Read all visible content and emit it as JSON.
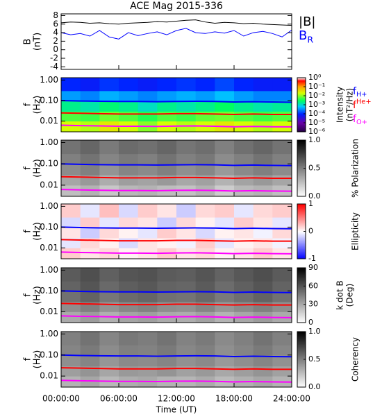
{
  "chart_data": [
    {
      "type": "line",
      "title": "ACE Mag 2015-336",
      "ylabel": "B",
      "yunit": "(nT)",
      "x": [
        0,
        1,
        2,
        3,
        4,
        5,
        6,
        7,
        8,
        9,
        10,
        11,
        12,
        13,
        14,
        15,
        16,
        17,
        18,
        19,
        20,
        21,
        22,
        23,
        24
      ],
      "series": [
        {
          "name": "|B|",
          "color": "#000000",
          "values": [
            6.3,
            6.5,
            6.4,
            6.2,
            6.3,
            6.1,
            6.0,
            6.2,
            6.3,
            6.4,
            6.6,
            6.5,
            6.7,
            6.9,
            7.0,
            6.5,
            6.2,
            6.4,
            6.3,
            6.1,
            6.2,
            6.0,
            5.9,
            5.8,
            5.7
          ]
        },
        {
          "name": "B",
          "sub": "R",
          "color": "#0000ff",
          "values": [
            4.0,
            3.5,
            3.8,
            3.2,
            4.5,
            3.0,
            2.5,
            4.0,
            3.3,
            3.8,
            4.2,
            3.5,
            4.5,
            5.0,
            4.0,
            3.8,
            4.2,
            3.9,
            4.5,
            3.2,
            4.0,
            4.3,
            3.8,
            3.0,
            4.6
          ]
        }
      ],
      "xlim": [
        0,
        24
      ],
      "xticks": [
        0,
        6,
        12,
        18,
        24
      ],
      "ylim": [
        -4.6,
        8.4
      ],
      "yticks": [
        -4,
        -2,
        0,
        2,
        4,
        6,
        8
      ]
    },
    {
      "type": "heatmap",
      "ylabel": "f",
      "yunit": "(Hz)",
      "ylog": true,
      "xlim": [
        0,
        24
      ],
      "xticks": [
        0,
        6,
        12,
        18,
        24
      ],
      "ylim": [
        0.003,
        1.3
      ],
      "yticks": [
        0.01,
        {
          "value": 0.1,
          "label": "0.10"
        },
        {
          "value": 1,
          "label": "1.00"
        }
      ],
      "xbins": [
        0,
        2,
        4,
        6,
        8,
        10,
        12,
        14,
        16,
        18,
        20,
        22,
        24
      ],
      "ybins": [
        0.003,
        0.01,
        0.03,
        0.1,
        0.3,
        1.3
      ],
      "z": [
        [
          0.02,
          0.015,
          0.03,
          0.02,
          0.01,
          0.02,
          0.015,
          0.02,
          0.03,
          0.02,
          0.015,
          0.02
        ],
        [
          0.006,
          0.005,
          0.008,
          0.006,
          0.004,
          0.006,
          0.005,
          0.007,
          0.008,
          0.006,
          0.005,
          0.006
        ],
        [
          0.002,
          0.0015,
          0.0025,
          0.002,
          0.0012,
          0.002,
          0.0015,
          0.002,
          0.003,
          0.002,
          0.0015,
          0.0018
        ],
        [
          0.0004,
          0.0003,
          0.0005,
          0.0004,
          0.0003,
          0.0004,
          0.0005,
          0.0004,
          0.0006,
          0.0004,
          0.0003,
          0.0003
        ],
        [
          0.0001,
          8e-05,
          0.00012,
          0.0001,
          8e-05,
          0.0001,
          0.00012,
          0.0001,
          0.00015,
          0.0001,
          8e-05,
          8e-05
        ]
      ],
      "colormap": "rainbow",
      "clog": true,
      "clim": [
        1e-06,
        1
      ],
      "cticks": [
        {
          "value": 1,
          "label": "10⁰"
        },
        {
          "value": 0.1,
          "label": "10⁻¹"
        },
        {
          "value": 0.01,
          "label": "10⁻²"
        },
        {
          "value": 0.001,
          "label": "10⁻³"
        },
        {
          "value": 0.0001,
          "label": "10⁻⁴"
        },
        {
          "value": 1e-05,
          "label": "10⁻⁵"
        },
        {
          "value": 1e-06,
          "label": "10⁻⁶"
        }
      ],
      "clabel": [
        "Intensity",
        "(nT²/Hz)"
      ],
      "x": [
        0,
        2,
        4,
        6,
        8,
        10,
        12,
        14,
        16,
        18,
        20,
        22,
        24
      ],
      "series": [
        {
          "name": "f",
          "sub": "H+",
          "color": "#0000ff",
          "values": [
            0.1,
            0.095,
            0.092,
            0.09,
            0.09,
            0.088,
            0.09,
            0.092,
            0.09,
            0.085,
            0.088,
            0.085,
            0.083
          ]
        },
        {
          "name": "f",
          "sup": "He+",
          "color": "#ff0000",
          "values": [
            0.025,
            0.024,
            0.023,
            0.022,
            0.022,
            0.022,
            0.023,
            0.023,
            0.022,
            0.021,
            0.022,
            0.021,
            0.021
          ]
        },
        {
          "name": "f",
          "sub": "O+",
          "color": "#ff00ff",
          "values": [
            0.0063,
            0.006,
            0.0058,
            0.0056,
            0.0056,
            0.0055,
            0.0057,
            0.0058,
            0.0056,
            0.0053,
            0.0055,
            0.0053,
            0.0052
          ]
        }
      ]
    },
    {
      "type": "heatmap",
      "ylabel": "f",
      "yunit": "(Hz)",
      "ylog": true,
      "xlim": [
        0,
        24
      ],
      "xticks": [
        0,
        6,
        12,
        18,
        24
      ],
      "ylim": [
        0.003,
        1.3
      ],
      "yticks": [
        0.01,
        {
          "value": 0.1,
          "label": "0.10"
        },
        {
          "value": 1,
          "label": "1.00"
        }
      ],
      "xbins": [
        0,
        2,
        4,
        6,
        8,
        10,
        12,
        14,
        16,
        18,
        20,
        22,
        24
      ],
      "ybins": [
        0.003,
        0.01,
        0.03,
        0.1,
        0.3,
        1.3
      ],
      "z": [
        [
          0.25,
          0.3,
          0.22,
          0.28,
          0.3,
          0.26,
          0.24,
          0.3,
          0.2,
          0.27,
          0.3,
          0.25
        ],
        [
          0.35,
          0.4,
          0.32,
          0.38,
          0.36,
          0.4,
          0.34,
          0.37,
          0.3,
          0.36,
          0.4,
          0.35
        ],
        [
          0.45,
          0.5,
          0.42,
          0.48,
          0.46,
          0.5,
          0.44,
          0.47,
          0.4,
          0.46,
          0.5,
          0.45
        ],
        [
          0.5,
          0.55,
          0.48,
          0.52,
          0.5,
          0.55,
          0.5,
          0.53,
          0.45,
          0.5,
          0.55,
          0.5
        ],
        [
          0.55,
          0.6,
          0.52,
          0.58,
          0.56,
          0.6,
          0.54,
          0.57,
          0.5,
          0.56,
          0.6,
          0.55
        ]
      ],
      "colormap": "gray",
      "clim": [
        0,
        1
      ],
      "cticks": [
        {
          "value": 0,
          "label": "0.0"
        },
        0.5,
        {
          "value": 1,
          "label": "1.0"
        }
      ],
      "clabel": [
        "% Polarization"
      ],
      "x": [
        0,
        2,
        4,
        6,
        8,
        10,
        12,
        14,
        16,
        18,
        20,
        22,
        24
      ],
      "series": [
        {
          "color": "#0000ff",
          "values": [
            0.1,
            0.095,
            0.092,
            0.09,
            0.09,
            0.088,
            0.09,
            0.092,
            0.09,
            0.085,
            0.088,
            0.085,
            0.083
          ]
        },
        {
          "color": "#ff0000",
          "values": [
            0.025,
            0.024,
            0.023,
            0.022,
            0.022,
            0.022,
            0.023,
            0.023,
            0.022,
            0.021,
            0.022,
            0.021,
            0.021
          ]
        },
        {
          "color": "#ff00ff",
          "values": [
            0.0063,
            0.006,
            0.0058,
            0.0056,
            0.0056,
            0.0055,
            0.0057,
            0.0058,
            0.0056,
            0.0053,
            0.0055,
            0.0053,
            0.0052
          ]
        }
      ]
    },
    {
      "type": "heatmap",
      "ylabel": "f",
      "yunit": "(Hz)",
      "ylog": true,
      "xlim": [
        0,
        24
      ],
      "xticks": [
        0,
        6,
        12,
        18,
        24
      ],
      "ylim": [
        0.003,
        1.3
      ],
      "yticks": [
        0.01,
        {
          "value": 0.1,
          "label": "0.10"
        },
        {
          "value": 1,
          "label": "1.00"
        }
      ],
      "xbins": [
        0,
        2,
        4,
        6,
        8,
        10,
        12,
        14,
        16,
        18,
        20,
        22,
        24
      ],
      "ybins": [
        0.003,
        0.01,
        0.03,
        0.1,
        0.3,
        1.3
      ],
      "z": [
        [
          0.2,
          0.1,
          0.15,
          0.05,
          0.1,
          0.2,
          0.1,
          0.15,
          0.05,
          0.1,
          0.2,
          0.1
        ],
        [
          -0.1,
          0.15,
          0.05,
          -0.15,
          0.1,
          0.05,
          -0.05,
          0.2,
          -0.1,
          0.05,
          0.1,
          -0.05
        ],
        [
          0.1,
          -0.2,
          0.15,
          0.05,
          -0.1,
          0.2,
          0.1,
          -0.15,
          0.05,
          0.1,
          -0.05,
          0.15
        ],
        [
          -0.15,
          0.2,
          -0.1,
          0.15,
          0.1,
          -0.2,
          0.15,
          0.05,
          -0.1,
          0.2,
          0.1,
          -0.1
        ],
        [
          0.2,
          -0.1,
          0.25,
          -0.15,
          0.2,
          0.1,
          -0.2,
          0.15,
          0.2,
          -0.1,
          0.15,
          0.2
        ]
      ],
      "colormap": "bwr",
      "clim": [
        -1,
        1
      ],
      "cticks": [
        -1,
        0,
        1
      ],
      "clabel": [
        "Ellipticity"
      ],
      "x": [
        0,
        2,
        4,
        6,
        8,
        10,
        12,
        14,
        16,
        18,
        20,
        22,
        24
      ],
      "series": [
        {
          "color": "#0000ff",
          "values": [
            0.1,
            0.095,
            0.092,
            0.09,
            0.09,
            0.088,
            0.09,
            0.092,
            0.09,
            0.085,
            0.088,
            0.085,
            0.083
          ]
        },
        {
          "color": "#ff0000",
          "values": [
            0.025,
            0.024,
            0.023,
            0.022,
            0.022,
            0.022,
            0.023,
            0.023,
            0.022,
            0.021,
            0.022,
            0.021,
            0.021
          ]
        },
        {
          "color": "#ff00ff",
          "values": [
            0.0063,
            0.006,
            0.0058,
            0.0056,
            0.0056,
            0.0055,
            0.0057,
            0.0058,
            0.0056,
            0.0053,
            0.0055,
            0.0053,
            0.0052
          ]
        }
      ]
    },
    {
      "type": "heatmap",
      "ylabel": "f",
      "yunit": "(Hz)",
      "ylog": true,
      "xlim": [
        0,
        24
      ],
      "xticks": [
        0,
        6,
        12,
        18,
        24
      ],
      "ylim": [
        0.003,
        1.3
      ],
      "yticks": [
        0.01,
        {
          "value": 0.1,
          "label": "0.10"
        },
        {
          "value": 1,
          "label": "1.00"
        }
      ],
      "xbins": [
        0,
        2,
        4,
        6,
        8,
        10,
        12,
        14,
        16,
        18,
        20,
        22,
        24
      ],
      "ybins": [
        0.003,
        0.01,
        0.03,
        0.1,
        0.3,
        1.3
      ],
      "z": [
        [
          30,
          35,
          28,
          32,
          34,
          30,
          29,
          33,
          27,
          31,
          35,
          30
        ],
        [
          40,
          45,
          38,
          42,
          44,
          40,
          39,
          43,
          37,
          41,
          45,
          40
        ],
        [
          50,
          55,
          48,
          52,
          54,
          50,
          49,
          53,
          47,
          51,
          55,
          50
        ],
        [
          55,
          60,
          53,
          57,
          59,
          55,
          54,
          58,
          52,
          56,
          60,
          55
        ],
        [
          58,
          62,
          56,
          60,
          61,
          58,
          57,
          60,
          55,
          59,
          62,
          58
        ]
      ],
      "colormap": "gray",
      "clim": [
        0,
        90
      ],
      "cticks": [
        0,
        30,
        60,
        90
      ],
      "clabel": [
        "k dot B",
        "(Deg)"
      ],
      "x": [
        0,
        2,
        4,
        6,
        8,
        10,
        12,
        14,
        16,
        18,
        20,
        22,
        24
      ],
      "series": [
        {
          "color": "#0000ff",
          "values": [
            0.1,
            0.095,
            0.092,
            0.09,
            0.09,
            0.088,
            0.09,
            0.092,
            0.09,
            0.085,
            0.088,
            0.085,
            0.083
          ]
        },
        {
          "color": "#ff0000",
          "values": [
            0.025,
            0.024,
            0.023,
            0.022,
            0.022,
            0.022,
            0.023,
            0.023,
            0.022,
            0.021,
            0.022,
            0.021,
            0.021
          ]
        },
        {
          "color": "#ff00ff",
          "values": [
            0.0063,
            0.006,
            0.0058,
            0.0056,
            0.0056,
            0.0055,
            0.0057,
            0.0058,
            0.0056,
            0.0053,
            0.0055,
            0.0053,
            0.0052
          ]
        }
      ]
    },
    {
      "type": "heatmap",
      "ylabel": "f",
      "yunit": "(Hz)",
      "ylog": true,
      "xlabel": "Time (UT)",
      "xlim": [
        0,
        24
      ],
      "xticks": [
        {
          "value": 0,
          "label": "00:00:00"
        },
        {
          "value": 6,
          "label": "06:00:00"
        },
        {
          "value": 12,
          "label": "12:00:00"
        },
        {
          "value": 18,
          "label": "18:00:00"
        },
        {
          "value": 24,
          "label": "24:00:00"
        }
      ],
      "ylim": [
        0.003,
        1.3
      ],
      "yticks": [
        0.01,
        {
          "value": 0.1,
          "label": "0.10"
        },
        {
          "value": 1,
          "label": "1.00"
        }
      ],
      "xbins": [
        0,
        2,
        4,
        6,
        8,
        10,
        12,
        14,
        16,
        18,
        20,
        22,
        24
      ],
      "ybins": [
        0.003,
        0.01,
        0.03,
        0.1,
        0.3,
        1.3
      ],
      "z": [
        [
          0.3,
          0.35,
          0.28,
          0.32,
          0.34,
          0.3,
          0.29,
          0.33,
          0.27,
          0.31,
          0.35,
          0.3
        ],
        [
          0.38,
          0.42,
          0.35,
          0.4,
          0.39,
          0.42,
          0.37,
          0.4,
          0.34,
          0.38,
          0.42,
          0.37
        ],
        [
          0.44,
          0.48,
          0.41,
          0.46,
          0.45,
          0.48,
          0.43,
          0.46,
          0.4,
          0.44,
          0.48,
          0.43
        ],
        [
          0.48,
          0.52,
          0.45,
          0.5,
          0.49,
          0.52,
          0.47,
          0.5,
          0.44,
          0.48,
          0.52,
          0.47
        ],
        [
          0.5,
          0.55,
          0.48,
          0.53,
          0.51,
          0.55,
          0.49,
          0.52,
          0.46,
          0.5,
          0.55,
          0.5
        ]
      ],
      "colormap": "gray",
      "clim": [
        0,
        1
      ],
      "cticks": [
        {
          "value": 0,
          "label": "0.0"
        },
        0.5,
        {
          "value": 1,
          "label": "1.0"
        }
      ],
      "clabel": [
        "Coherency"
      ],
      "x": [
        0,
        2,
        4,
        6,
        8,
        10,
        12,
        14,
        16,
        18,
        20,
        22,
        24
      ],
      "series": [
        {
          "color": "#0000ff",
          "values": [
            0.1,
            0.095,
            0.092,
            0.09,
            0.09,
            0.088,
            0.09,
            0.092,
            0.09,
            0.085,
            0.088,
            0.085,
            0.083
          ]
        },
        {
          "color": "#ff0000",
          "values": [
            0.025,
            0.024,
            0.023,
            0.022,
            0.022,
            0.022,
            0.023,
            0.023,
            0.022,
            0.021,
            0.022,
            0.021,
            0.021
          ]
        },
        {
          "color": "#ff00ff",
          "values": [
            0.0063,
            0.006,
            0.0058,
            0.0056,
            0.0056,
            0.0055,
            0.0057,
            0.0058,
            0.0056,
            0.0053,
            0.0055,
            0.0053,
            0.0052
          ]
        }
      ]
    }
  ]
}
